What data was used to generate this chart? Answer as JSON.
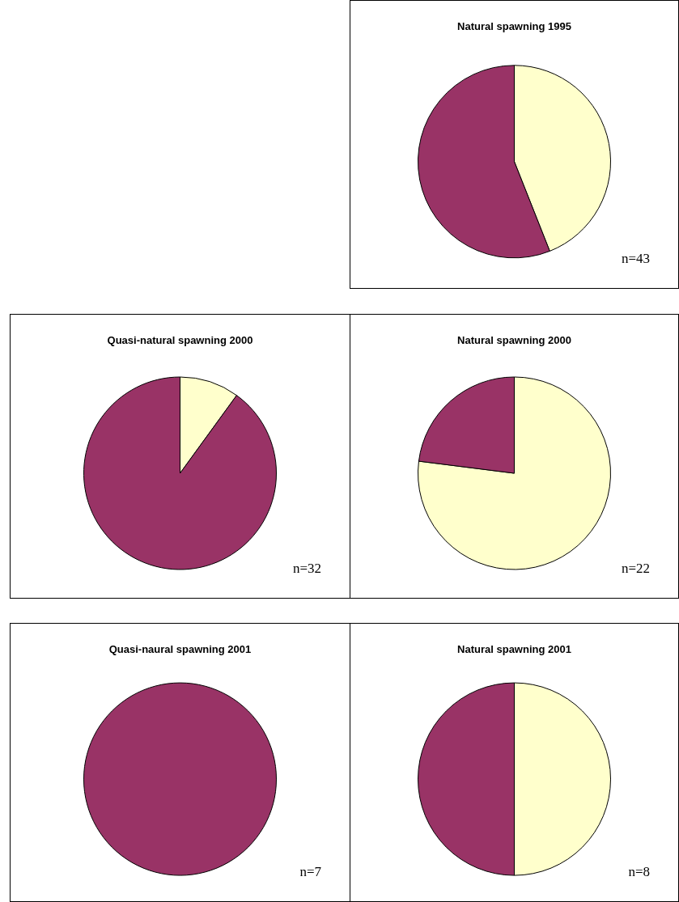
{
  "chart_data": [
    {
      "type": "pie",
      "title": "Natural spawning 1995",
      "categories": [
        null,
        null
      ],
      "values": [
        44,
        56
      ],
      "colors": [
        "#ffffcc",
        "#993366"
      ],
      "annotations": [
        "n=43"
      ]
    },
    {
      "type": "pie",
      "title": "Quasi-natural spawning 2000",
      "categories": [
        null,
        null
      ],
      "values": [
        10,
        90
      ],
      "colors": [
        "#ffffcc",
        "#993366"
      ],
      "annotations": [
        "n=32"
      ]
    },
    {
      "type": "pie",
      "title": "Natural spawning 2000",
      "categories": [
        null,
        null
      ],
      "values": [
        77,
        23
      ],
      "colors": [
        "#ffffcc",
        "#993366"
      ],
      "annotations": [
        "n=22"
      ]
    },
    {
      "type": "pie",
      "title": "Quasi-naural spawning 2001",
      "categories": [
        null,
        null
      ],
      "values": [
        0,
        100
      ],
      "colors": [
        "#ffffcc",
        "#993366"
      ],
      "annotations": [
        "n=7"
      ]
    },
    {
      "type": "pie",
      "title": "Natural spawning 2001",
      "categories": [
        null,
        null
      ],
      "values": [
        50,
        50
      ],
      "colors": [
        "#ffffcc",
        "#993366"
      ],
      "annotations": [
        "n=8"
      ]
    }
  ]
}
